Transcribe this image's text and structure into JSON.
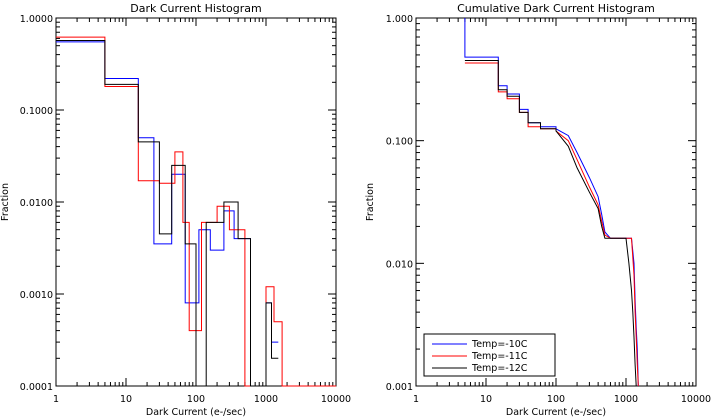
{
  "chart_data": [
    {
      "type": "line",
      "title": "Dark Current Histogram",
      "xlabel": "Dark Current (e-/sec)",
      "ylabel": "Fraction",
      "xscale": "log",
      "yscale": "log",
      "xlim": [
        1,
        10000
      ],
      "ylim": [
        0.0001,
        1.0
      ],
      "x_ticks": [
        1,
        10,
        100,
        1000,
        10000
      ],
      "x_tick_labels": [
        "1",
        "10",
        "100",
        "1000",
        "10000"
      ],
      "y_ticks": [
        0.0001,
        0.001,
        0.01,
        0.1,
        1.0
      ],
      "y_tick_labels": [
        "0.0001",
        "0.0010",
        "0.0100",
        "0.1000",
        "1.0000"
      ],
      "series": [
        {
          "name": "Temp=-10C",
          "color": "#0000ff",
          "x": [
            1,
            5,
            5,
            15,
            15,
            25,
            25,
            45,
            45,
            70,
            70,
            110,
            110,
            160,
            160,
            250,
            250,
            350,
            350,
            600,
            600,
            1000,
            1000,
            1200,
            1200,
            1500
          ],
          "y": [
            0.55,
            0.55,
            0.22,
            0.22,
            0.05,
            0.05,
            0.0035,
            0.0035,
            0.02,
            0.02,
            0.0008,
            0.0008,
            0.005,
            0.005,
            0.003,
            0.003,
            0.008,
            0.008,
            0.004,
            0.004,
            0.0001,
            0.0001,
            0.0008,
            0.0008,
            0.0003,
            0.0003
          ]
        },
        {
          "name": "Temp=-11C",
          "color": "#ff0000",
          "x": [
            1,
            5,
            5,
            15,
            15,
            30,
            30,
            50,
            50,
            65,
            65,
            80,
            80,
            120,
            120,
            200,
            200,
            300,
            300,
            500,
            500,
            1000,
            1000,
            1300,
            1300,
            1700,
            1700,
            10000
          ],
          "y": [
            0.62,
            0.62,
            0.18,
            0.18,
            0.017,
            0.017,
            0.016,
            0.016,
            0.035,
            0.035,
            0.006,
            0.006,
            0.0004,
            0.0004,
            0.006,
            0.006,
            0.009,
            0.009,
            0.005,
            0.005,
            0.0001,
            0.0001,
            0.0012,
            0.0012,
            0.0005,
            0.0005,
            0.0001,
            0.0001
          ]
        },
        {
          "name": "Temp=-12C",
          "color": "#000000",
          "x": [
            1,
            5,
            5,
            15,
            15,
            30,
            30,
            45,
            45,
            70,
            70,
            100,
            100,
            140,
            140,
            250,
            250,
            400,
            400,
            600,
            600,
            1000,
            1000,
            1200,
            1200,
            1500
          ],
          "y": [
            0.57,
            0.57,
            0.19,
            0.19,
            0.045,
            0.045,
            0.0045,
            0.0045,
            0.025,
            0.025,
            0.0035,
            0.0035,
            0.0001,
            0.0001,
            0.006,
            0.006,
            0.01,
            0.01,
            0.004,
            0.004,
            0.0001,
            0.0001,
            0.0008,
            0.0008,
            0.0002,
            0.0002
          ]
        }
      ]
    },
    {
      "type": "line",
      "title": "Cumulative Dark Current Histogram",
      "xlabel": "Dark Current (e-/sec)",
      "ylabel": "Fraction",
      "xscale": "log",
      "yscale": "log",
      "xlim": [
        1,
        10000
      ],
      "ylim": [
        0.001,
        1.0
      ],
      "x_ticks": [
        1,
        10,
        100,
        1000,
        10000
      ],
      "x_tick_labels": [
        "1",
        "10",
        "100",
        "1000",
        "10000"
      ],
      "y_ticks": [
        0.001,
        0.01,
        0.1,
        1.0
      ],
      "y_tick_labels": [
        "0.001",
        "0.010",
        "0.100",
        "1.000"
      ],
      "legend": {
        "position": "bottom-left",
        "entries": [
          "Temp=-10C",
          "Temp=-11C",
          "Temp=-12C"
        ]
      },
      "series": [
        {
          "name": "Temp=-10C",
          "color": "#0000ff",
          "x": [
            5,
            5,
            15,
            15,
            20,
            20,
            30,
            30,
            40,
            40,
            60,
            60,
            100,
            100,
            150,
            200,
            300,
            400,
            450,
            500,
            600,
            800,
            1000,
            1200,
            1300,
            1350,
            1400,
            1450,
            1500
          ],
          "y": [
            1.0,
            0.48,
            0.48,
            0.28,
            0.28,
            0.24,
            0.24,
            0.18,
            0.18,
            0.14,
            0.14,
            0.13,
            0.13,
            0.125,
            0.11,
            0.08,
            0.05,
            0.035,
            0.025,
            0.018,
            0.016,
            0.016,
            0.016,
            0.016,
            0.01,
            0.005,
            0.003,
            0.002,
            0.001
          ]
        },
        {
          "name": "Temp=-11C",
          "color": "#ff0000",
          "x": [
            5,
            15,
            15,
            20,
            20,
            30,
            30,
            40,
            40,
            60,
            60,
            100,
            100,
            150,
            200,
            300,
            400,
            450,
            500,
            600,
            800,
            1000,
            1200,
            1300,
            1350,
            1400,
            1450,
            1500
          ],
          "y": [
            0.43,
            0.43,
            0.25,
            0.25,
            0.22,
            0.22,
            0.17,
            0.17,
            0.13,
            0.13,
            0.125,
            0.125,
            0.12,
            0.1,
            0.07,
            0.042,
            0.03,
            0.022,
            0.017,
            0.016,
            0.016,
            0.016,
            0.016,
            0.008,
            0.004,
            0.0025,
            0.0015,
            0.001
          ]
        },
        {
          "name": "Temp=-12C",
          "color": "#000000",
          "x": [
            5,
            15,
            15,
            20,
            20,
            30,
            30,
            40,
            40,
            60,
            60,
            100,
            100,
            150,
            200,
            300,
            400,
            450,
            500,
            600,
            800,
            1000,
            1100,
            1200,
            1250,
            1300,
            1350,
            1400
          ],
          "y": [
            0.45,
            0.45,
            0.26,
            0.26,
            0.23,
            0.23,
            0.17,
            0.17,
            0.14,
            0.14,
            0.125,
            0.125,
            0.12,
            0.09,
            0.06,
            0.038,
            0.028,
            0.02,
            0.016,
            0.016,
            0.016,
            0.016,
            0.01,
            0.006,
            0.004,
            0.0025,
            0.0015,
            0.001
          ]
        }
      ]
    }
  ]
}
